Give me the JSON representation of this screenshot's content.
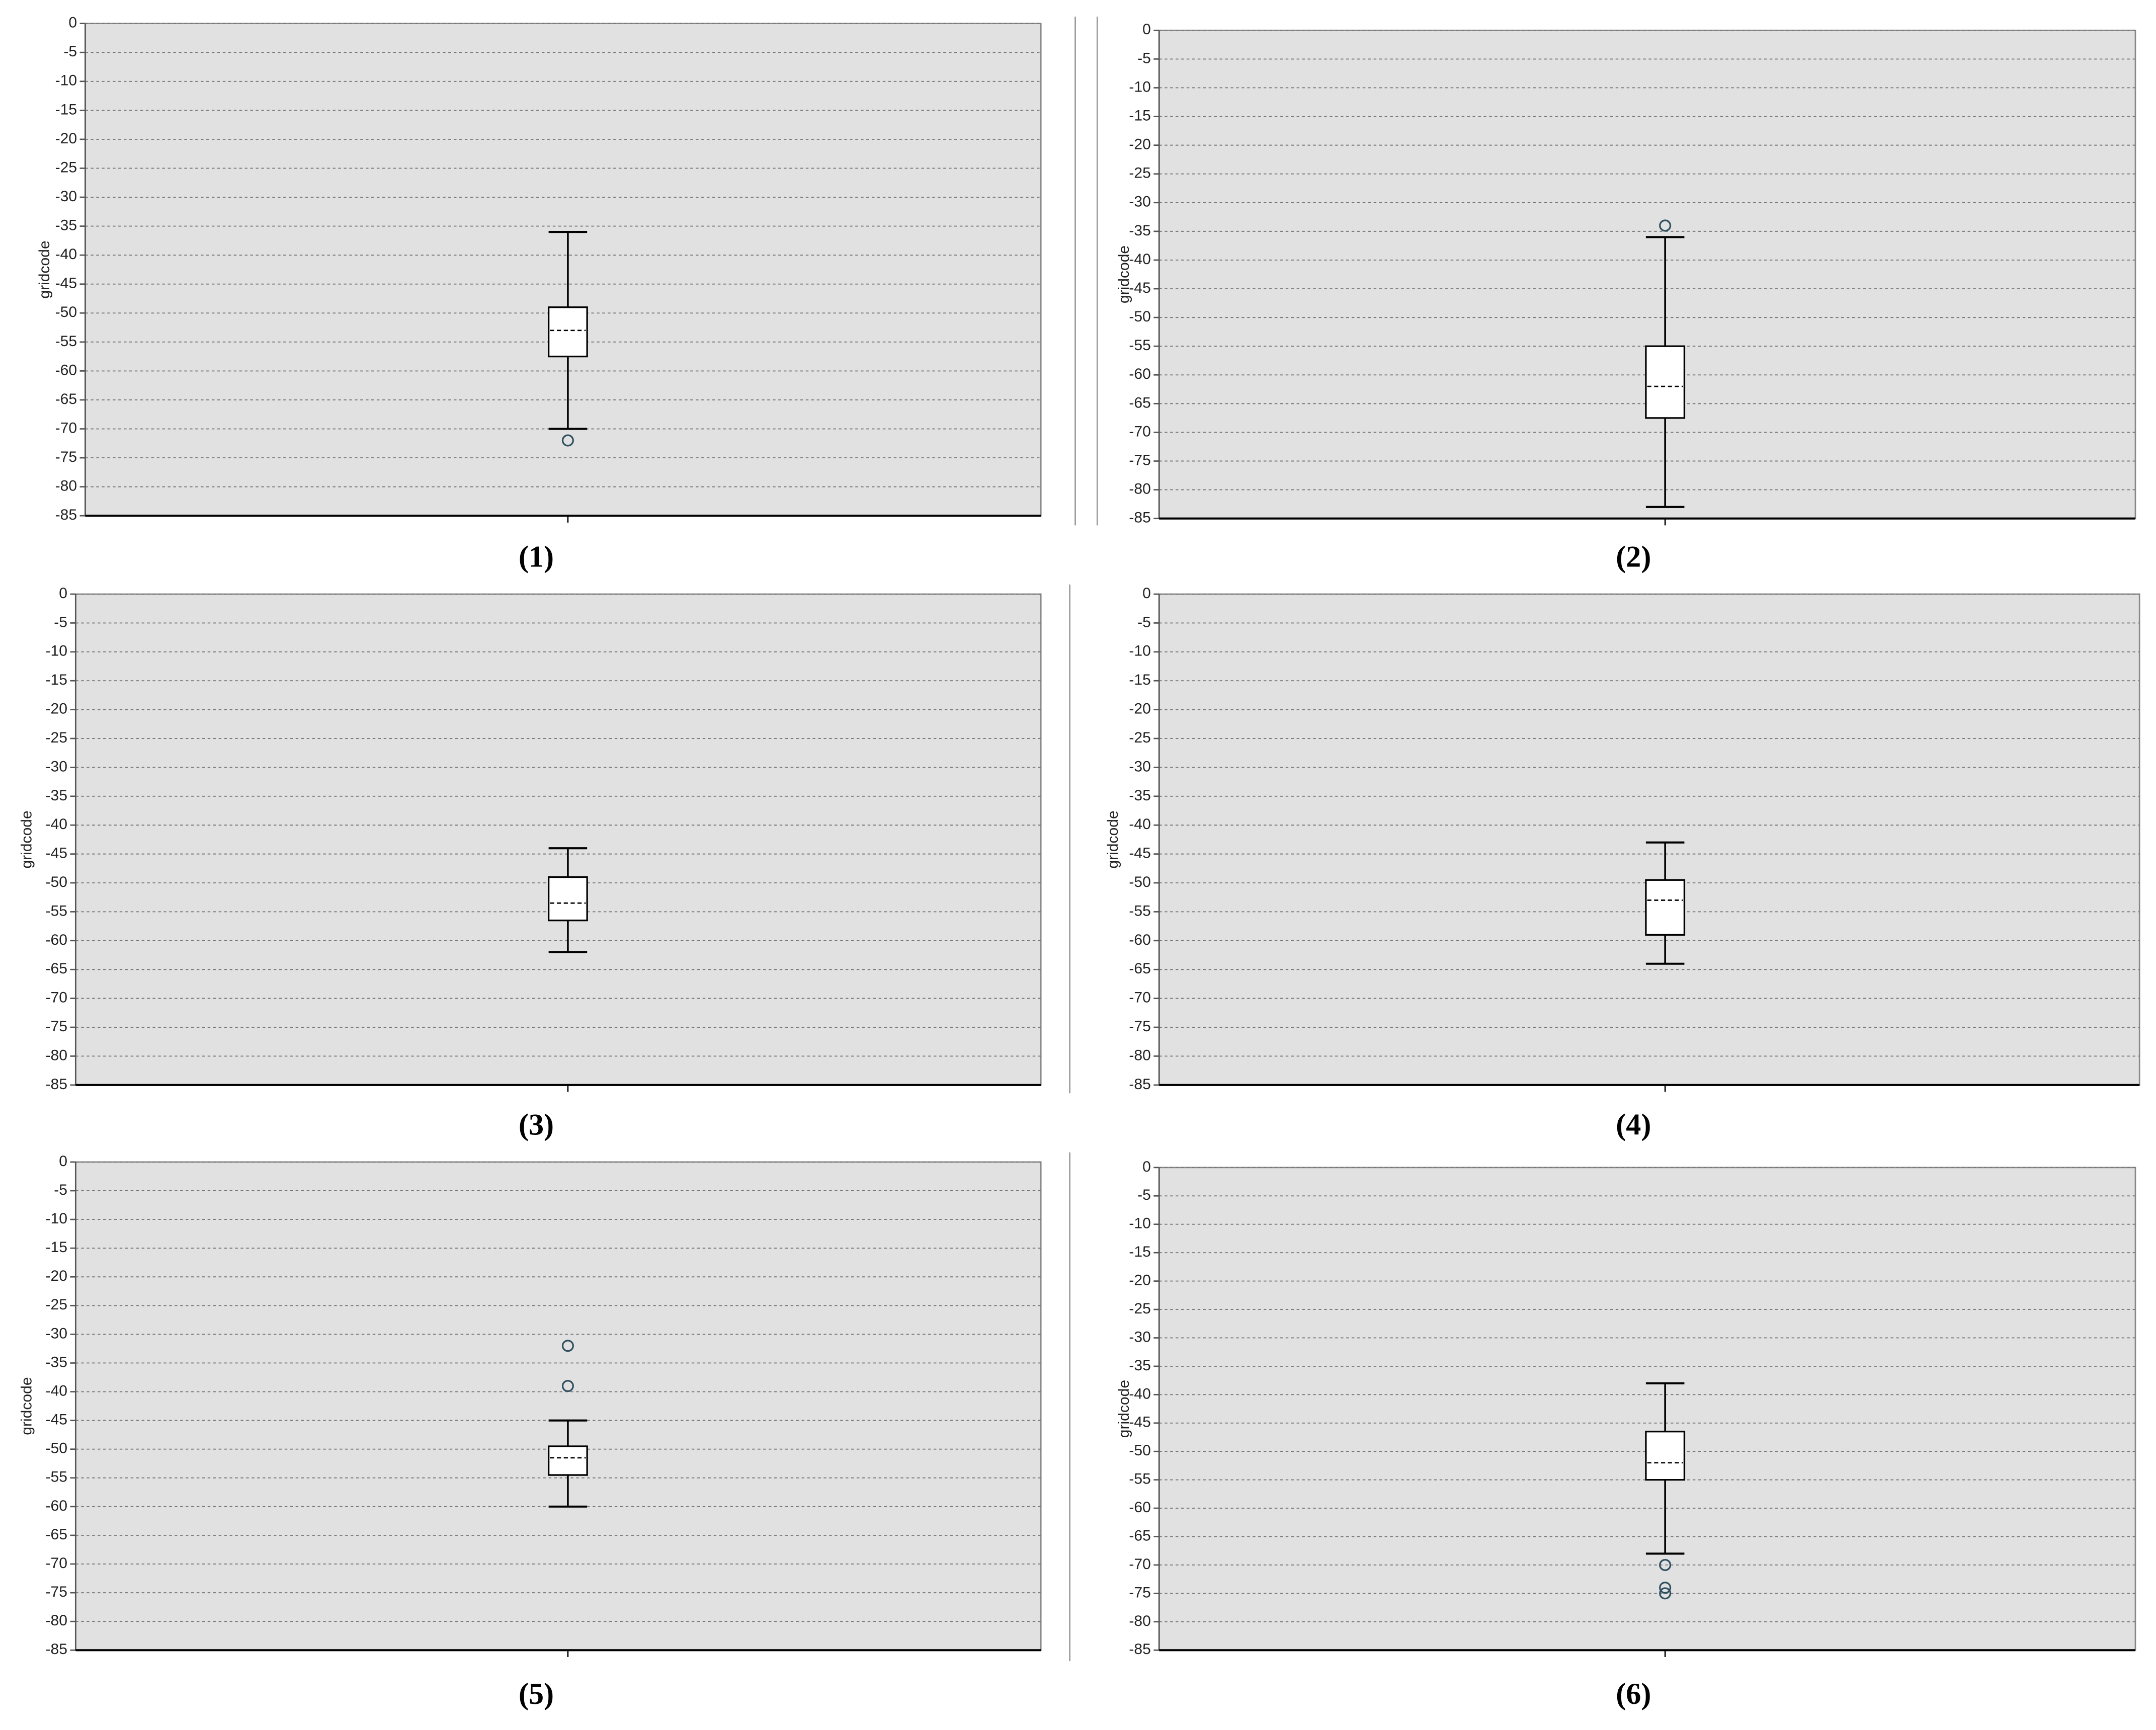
{
  "chart_data": [
    {
      "type": "box",
      "caption": "(1)",
      "y_label": "gridcode",
      "ylim": [
        -85,
        0
      ],
      "yticks": [
        0,
        -5,
        -10,
        -15,
        -20,
        -25,
        -30,
        -35,
        -40,
        -45,
        -50,
        -55,
        -60,
        -65,
        -70,
        -75,
        -80,
        -85
      ],
      "grid": true,
      "box": {
        "whisker_low": -70,
        "q1": -57.5,
        "median": -53,
        "q3": -49,
        "whisker_high": -36,
        "outliers": [
          -72
        ]
      }
    },
    {
      "type": "box",
      "caption": "(2)",
      "y_label": "gridcode",
      "ylim": [
        -85,
        0
      ],
      "yticks": [
        0,
        -5,
        -10,
        -15,
        -20,
        -25,
        -30,
        -35,
        -40,
        -45,
        -50,
        -55,
        -60,
        -65,
        -70,
        -75,
        -80,
        -85
      ],
      "grid": true,
      "box": {
        "whisker_low": -83,
        "q1": -67.5,
        "median": -62,
        "q3": -55,
        "whisker_high": -36,
        "outliers": [
          -34
        ]
      }
    },
    {
      "type": "box",
      "caption": "(3)",
      "y_label": "gridcode",
      "ylim": [
        -85,
        0
      ],
      "yticks": [
        0,
        -5,
        -10,
        -15,
        -20,
        -25,
        -30,
        -35,
        -40,
        -45,
        -50,
        -55,
        -60,
        -65,
        -70,
        -75,
        -80,
        -85
      ],
      "grid": true,
      "box": {
        "whisker_low": -62,
        "q1": -56.5,
        "median": -53.5,
        "q3": -49,
        "whisker_high": -44,
        "outliers": []
      }
    },
    {
      "type": "box",
      "caption": "(4)",
      "y_label": "gridcode",
      "ylim": [
        -85,
        0
      ],
      "yticks": [
        0,
        -5,
        -10,
        -15,
        -20,
        -25,
        -30,
        -35,
        -40,
        -45,
        -50,
        -55,
        -60,
        -65,
        -70,
        -75,
        -80,
        -85
      ],
      "grid": true,
      "box": {
        "whisker_low": -64,
        "q1": -59,
        "median": -53,
        "q3": -49.5,
        "whisker_high": -43,
        "outliers": []
      }
    },
    {
      "type": "box",
      "caption": "(5)",
      "y_label": "gridcode",
      "ylim": [
        -85,
        0
      ],
      "yticks": [
        0,
        -5,
        -10,
        -15,
        -20,
        -25,
        -30,
        -35,
        -40,
        -45,
        -50,
        -55,
        -60,
        -65,
        -70,
        -75,
        -80,
        -85
      ],
      "grid": true,
      "box": {
        "whisker_low": -60,
        "q1": -54.5,
        "median": -51.5,
        "q3": -49.5,
        "whisker_high": -45,
        "outliers": [
          -32,
          -39
        ]
      }
    },
    {
      "type": "box",
      "caption": "(6)",
      "y_label": "gridcode",
      "ylim": [
        -85,
        0
      ],
      "yticks": [
        0,
        -5,
        -10,
        -15,
        -20,
        -25,
        -30,
        -35,
        -40,
        -45,
        -50,
        -55,
        -60,
        -65,
        -70,
        -75,
        -80,
        -85
      ],
      "grid": true,
      "box": {
        "whisker_low": -68,
        "q1": -55,
        "median": -52,
        "q3": -46.5,
        "whisker_high": -38,
        "outliers": [
          -70,
          -74,
          -75
        ]
      }
    }
  ]
}
